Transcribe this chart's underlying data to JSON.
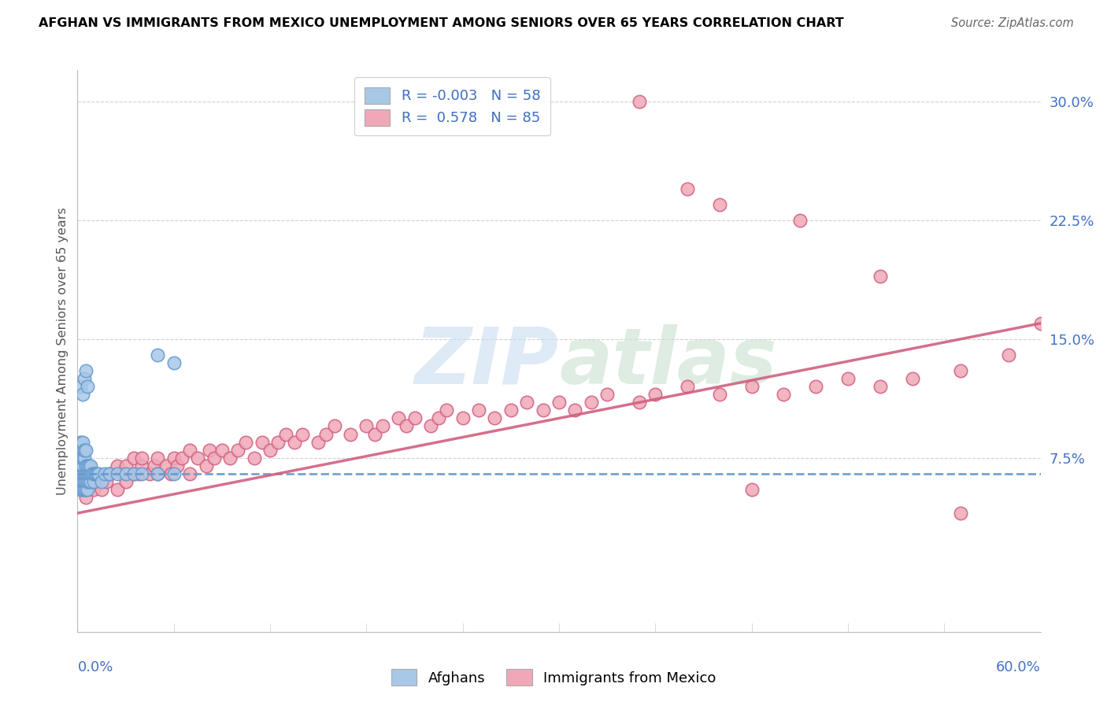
{
  "title": "AFGHAN VS IMMIGRANTS FROM MEXICO UNEMPLOYMENT AMONG SENIORS OVER 65 YEARS CORRELATION CHART",
  "source": "Source: ZipAtlas.com",
  "ylabel": "Unemployment Among Seniors over 65 years",
  "xmin": 0.0,
  "xmax": 0.6,
  "ymin": -0.035,
  "ymax": 0.32,
  "afghan_color": "#A8C8E8",
  "afghan_color_dark": "#6699CC",
  "mexico_color": "#F0A8B8",
  "mexico_color_dark": "#D06080",
  "afghan_R": -0.003,
  "afghan_N": 58,
  "mexico_R": 0.578,
  "mexico_N": 85,
  "afghan_trend_y0": 0.065,
  "afghan_trend_y1": 0.065,
  "mexico_trend_y0": 0.04,
  "mexico_trend_y1": 0.16,
  "afghan_x": [
    0.001,
    0.001,
    0.001,
    0.001,
    0.001,
    0.002,
    0.002,
    0.002,
    0.002,
    0.002,
    0.003,
    0.003,
    0.003,
    0.003,
    0.003,
    0.003,
    0.004,
    0.004,
    0.004,
    0.004,
    0.004,
    0.005,
    0.005,
    0.005,
    0.005,
    0.005,
    0.006,
    0.006,
    0.006,
    0.006,
    0.007,
    0.007,
    0.007,
    0.008,
    0.008,
    0.008,
    0.009,
    0.01,
    0.01,
    0.011,
    0.012,
    0.013,
    0.015,
    0.017,
    0.02,
    0.025,
    0.03,
    0.035,
    0.04,
    0.05,
    0.06,
    0.002,
    0.003,
    0.004,
    0.005,
    0.006,
    0.05,
    0.06
  ],
  "afghan_y": [
    0.06,
    0.065,
    0.07,
    0.075,
    0.08,
    0.055,
    0.065,
    0.07,
    0.075,
    0.085,
    0.055,
    0.06,
    0.065,
    0.07,
    0.075,
    0.085,
    0.055,
    0.06,
    0.065,
    0.075,
    0.08,
    0.055,
    0.06,
    0.065,
    0.07,
    0.08,
    0.055,
    0.06,
    0.065,
    0.07,
    0.06,
    0.065,
    0.07,
    0.06,
    0.065,
    0.07,
    0.065,
    0.06,
    0.065,
    0.065,
    0.065,
    0.065,
    0.06,
    0.065,
    0.065,
    0.065,
    0.065,
    0.065,
    0.065,
    0.065,
    0.065,
    0.12,
    0.115,
    0.125,
    0.13,
    0.12,
    0.14,
    0.135
  ],
  "mexico_x": [
    0.005,
    0.01,
    0.012,
    0.015,
    0.018,
    0.02,
    0.025,
    0.025,
    0.028,
    0.03,
    0.03,
    0.035,
    0.035,
    0.038,
    0.04,
    0.04,
    0.045,
    0.048,
    0.05,
    0.05,
    0.055,
    0.058,
    0.06,
    0.062,
    0.065,
    0.07,
    0.07,
    0.075,
    0.08,
    0.082,
    0.085,
    0.09,
    0.095,
    0.1,
    0.105,
    0.11,
    0.115,
    0.12,
    0.125,
    0.13,
    0.135,
    0.14,
    0.15,
    0.155,
    0.16,
    0.17,
    0.18,
    0.185,
    0.19,
    0.2,
    0.205,
    0.21,
    0.22,
    0.225,
    0.23,
    0.24,
    0.25,
    0.26,
    0.27,
    0.28,
    0.29,
    0.3,
    0.31,
    0.32,
    0.33,
    0.35,
    0.36,
    0.38,
    0.4,
    0.42,
    0.44,
    0.46,
    0.48,
    0.5,
    0.52,
    0.55,
    0.58,
    0.6,
    0.4,
    0.5,
    0.38,
    0.45,
    0.35,
    0.42,
    0.55
  ],
  "mexico_y": [
    0.05,
    0.055,
    0.06,
    0.055,
    0.06,
    0.065,
    0.055,
    0.07,
    0.065,
    0.06,
    0.07,
    0.065,
    0.075,
    0.065,
    0.07,
    0.075,
    0.065,
    0.07,
    0.065,
    0.075,
    0.07,
    0.065,
    0.075,
    0.07,
    0.075,
    0.065,
    0.08,
    0.075,
    0.07,
    0.08,
    0.075,
    0.08,
    0.075,
    0.08,
    0.085,
    0.075,
    0.085,
    0.08,
    0.085,
    0.09,
    0.085,
    0.09,
    0.085,
    0.09,
    0.095,
    0.09,
    0.095,
    0.09,
    0.095,
    0.1,
    0.095,
    0.1,
    0.095,
    0.1,
    0.105,
    0.1,
    0.105,
    0.1,
    0.105,
    0.11,
    0.105,
    0.11,
    0.105,
    0.11,
    0.115,
    0.11,
    0.115,
    0.12,
    0.115,
    0.12,
    0.115,
    0.12,
    0.125,
    0.12,
    0.125,
    0.13,
    0.14,
    0.16,
    0.235,
    0.19,
    0.245,
    0.225,
    0.3,
    0.055,
    0.04
  ]
}
